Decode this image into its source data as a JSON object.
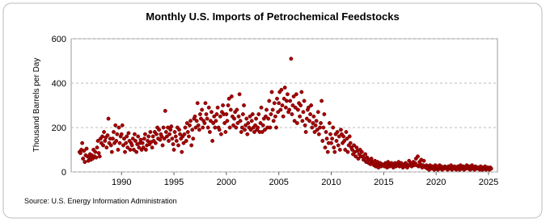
{
  "chart_data": {
    "type": "scatter",
    "title": "Monthly U.S. Imports of Petrochemical Feedstocks",
    "y_label": "Thousand Barrels per Day",
    "source": "Source: U.S. Energy Information Administration",
    "color": "#a50000",
    "grid": true,
    "xlim": [
      1985.2,
      2025.85
    ],
    "xticks": [
      1990,
      1995,
      2000,
      2005,
      2010,
      2015,
      2020,
      2025
    ],
    "ylim": [
      0,
      600
    ],
    "yticks": [
      0,
      200,
      400,
      600
    ],
    "x": [
      1986,
      1986.08,
      1986.17,
      1986.25,
      1986.33,
      1986.42,
      1986.5,
      1986.58,
      1986.67,
      1986.75,
      1986.83,
      1986.92,
      1987,
      1987.08,
      1987.17,
      1987.25,
      1987.33,
      1987.42,
      1987.5,
      1987.58,
      1987.67,
      1987.75,
      1987.83,
      1987.92,
      1988,
      1988.08,
      1988.17,
      1988.25,
      1988.33,
      1988.42,
      1988.5,
      1988.58,
      1988.67,
      1988.75,
      1988.83,
      1988.92,
      1989,
      1989.08,
      1989.17,
      1989.25,
      1989.33,
      1989.42,
      1989.5,
      1989.58,
      1989.67,
      1989.75,
      1989.83,
      1989.92,
      1990,
      1990.08,
      1990.17,
      1990.25,
      1990.33,
      1990.42,
      1990.5,
      1990.58,
      1990.67,
      1990.75,
      1990.83,
      1990.92,
      1991,
      1991.08,
      1991.17,
      1991.25,
      1991.33,
      1991.42,
      1991.5,
      1991.58,
      1991.67,
      1991.75,
      1991.83,
      1991.92,
      1992,
      1992.08,
      1992.17,
      1992.25,
      1992.33,
      1992.42,
      1992.5,
      1992.58,
      1992.67,
      1992.75,
      1992.83,
      1992.92,
      1993,
      1993.08,
      1993.17,
      1993.25,
      1993.33,
      1993.42,
      1993.5,
      1993.58,
      1993.67,
      1993.75,
      1993.83,
      1993.92,
      1994,
      1994.08,
      1994.17,
      1994.25,
      1994.33,
      1994.42,
      1994.5,
      1994.58,
      1994.67,
      1994.75,
      1994.83,
      1994.92,
      1995,
      1995.08,
      1995.17,
      1995.25,
      1995.33,
      1995.42,
      1995.5,
      1995.58,
      1995.67,
      1995.75,
      1995.83,
      1995.92,
      1996,
      1996.08,
      1996.17,
      1996.25,
      1996.33,
      1996.42,
      1996.5,
      1996.58,
      1996.67,
      1996.75,
      1996.83,
      1996.92,
      1997,
      1997.08,
      1997.17,
      1997.25,
      1997.33,
      1997.42,
      1997.5,
      1997.58,
      1997.67,
      1997.75,
      1997.83,
      1997.92,
      1998,
      1998.08,
      1998.17,
      1998.25,
      1998.33,
      1998.42,
      1998.5,
      1998.58,
      1998.67,
      1998.75,
      1998.83,
      1998.92,
      1999,
      1999.08,
      1999.17,
      1999.25,
      1999.33,
      1999.42,
      1999.5,
      1999.58,
      1999.67,
      1999.75,
      1999.83,
      1999.92,
      2000,
      2000.08,
      2000.17,
      2000.25,
      2000.33,
      2000.42,
      2000.5,
      2000.58,
      2000.67,
      2000.75,
      2000.83,
      2000.92,
      2001,
      2001.08,
      2001.17,
      2001.25,
      2001.33,
      2001.42,
      2001.5,
      2001.58,
      2001.67,
      2001.75,
      2001.83,
      2001.92,
      2002,
      2002.08,
      2002.17,
      2002.25,
      2002.33,
      2002.42,
      2002.5,
      2002.58,
      2002.67,
      2002.75,
      2002.83,
      2002.92,
      2003,
      2003.08,
      2003.17,
      2003.25,
      2003.33,
      2003.42,
      2003.5,
      2003.58,
      2003.67,
      2003.75,
      2003.83,
      2003.92,
      2004,
      2004.08,
      2004.17,
      2004.25,
      2004.33,
      2004.42,
      2004.5,
      2004.58,
      2004.67,
      2004.75,
      2004.83,
      2004.92,
      2005,
      2005.08,
      2005.17,
      2005.25,
      2005.33,
      2005.42,
      2005.5,
      2005.58,
      2005.67,
      2005.75,
      2005.83,
      2005.92,
      2006,
      2006.08,
      2006.17,
      2006.25,
      2006.33,
      2006.42,
      2006.5,
      2006.58,
      2006.67,
      2006.75,
      2006.83,
      2006.92,
      2007,
      2007.08,
      2007.17,
      2007.25,
      2007.33,
      2007.42,
      2007.5,
      2007.58,
      2007.67,
      2007.75,
      2007.83,
      2007.92,
      2008,
      2008.08,
      2008.17,
      2008.25,
      2008.33,
      2008.42,
      2008.5,
      2008.58,
      2008.67,
      2008.75,
      2008.83,
      2008.92,
      2009,
      2009.08,
      2009.17,
      2009.25,
      2009.33,
      2009.42,
      2009.5,
      2009.58,
      2009.67,
      2009.75,
      2009.83,
      2009.92,
      2010,
      2010.08,
      2010.17,
      2010.25,
      2010.33,
      2010.42,
      2010.5,
      2010.58,
      2010.67,
      2010.75,
      2010.83,
      2010.92,
      2011,
      2011.08,
      2011.17,
      2011.25,
      2011.33,
      2011.42,
      2011.5,
      2011.58,
      2011.67,
      2011.75,
      2011.83,
      2011.92,
      2012,
      2012.08,
      2012.17,
      2012.25,
      2012.33,
      2012.42,
      2012.5,
      2012.58,
      2012.67,
      2012.75,
      2012.83,
      2012.92,
      2013,
      2013.08,
      2013.17,
      2013.25,
      2013.33,
      2013.42,
      2013.5,
      2013.58,
      2013.67,
      2013.75,
      2013.83,
      2013.92,
      2014,
      2014.08,
      2014.17,
      2014.25,
      2014.33,
      2014.42,
      2014.5,
      2014.58,
      2014.67,
      2014.75,
      2014.83,
      2014.92,
      2015,
      2015.08,
      2015.17,
      2015.25,
      2015.33,
      2015.42,
      2015.5,
      2015.58,
      2015.67,
      2015.75,
      2015.83,
      2015.92,
      2016,
      2016.08,
      2016.17,
      2016.25,
      2016.33,
      2016.42,
      2016.5,
      2016.58,
      2016.67,
      2016.75,
      2016.83,
      2016.92,
      2017,
      2017.08,
      2017.17,
      2017.25,
      2017.33,
      2017.42,
      2017.5,
      2017.58,
      2017.67,
      2017.75,
      2017.83,
      2017.92,
      2018,
      2018.08,
      2018.17,
      2018.25,
      2018.33,
      2018.42,
      2018.5,
      2018.58,
      2018.67,
      2018.75,
      2018.83,
      2018.92,
      2019,
      2019.08,
      2019.17,
      2019.25,
      2019.33,
      2019.42,
      2019.5,
      2019.58,
      2019.67,
      2019.75,
      2019.83,
      2019.92,
      2020,
      2020.08,
      2020.17,
      2020.25,
      2020.33,
      2020.42,
      2020.5,
      2020.58,
      2020.67,
      2020.75,
      2020.83,
      2020.92,
      2021,
      2021.08,
      2021.17,
      2021.25,
      2021.33,
      2021.42,
      2021.5,
      2021.58,
      2021.67,
      2021.75,
      2021.83,
      2021.92,
      2022,
      2022.08,
      2022.17,
      2022.25,
      2022.33,
      2022.42,
      2022.5,
      2022.58,
      2022.67,
      2022.75,
      2022.83,
      2022.92,
      2023,
      2023.08,
      2023.17,
      2023.25,
      2023.33,
      2023.42,
      2023.5,
      2023.58,
      2023.67,
      2023.75,
      2023.83,
      2023.92,
      2024,
      2024.08,
      2024.17,
      2024.25,
      2024.33,
      2024.42,
      2024.5,
      2024.58,
      2024.67,
      2024.75,
      2024.83,
      2024.92,
      2025,
      2025.08,
      2025.17,
      2025.25
    ],
    "values": [
      90,
      85,
      100,
      130,
      60,
      95,
      45,
      75,
      105,
      70,
      50,
      65,
      80,
      55,
      75,
      60,
      100,
      70,
      90,
      65,
      110,
      140,
      85,
      70,
      150,
      130,
      160,
      120,
      180,
      140,
      155,
      110,
      165,
      240,
      130,
      150,
      120,
      90,
      150,
      180,
      130,
      210,
      140,
      170,
      100,
      200,
      130,
      160,
      170,
      210,
      120,
      150,
      90,
      130,
      160,
      110,
      175,
      140,
      100,
      130,
      120,
      150,
      100,
      170,
      140,
      90,
      125,
      160,
      110,
      130,
      145,
      100,
      130,
      110,
      150,
      170,
      100,
      120,
      140,
      160,
      125,
      180,
      135,
      110,
      160,
      140,
      180,
      130,
      170,
      200,
      150,
      190,
      145,
      170,
      160,
      120,
      200,
      150,
      275,
      180,
      160,
      200,
      140,
      170,
      190,
      205,
      150,
      125,
      100,
      180,
      160,
      140,
      200,
      120,
      190,
      170,
      150,
      90,
      160,
      130,
      170,
      200,
      140,
      220,
      180,
      160,
      210,
      230,
      120,
      190,
      150,
      240,
      250,
      200,
      230,
      310,
      210,
      190,
      260,
      240,
      280,
      200,
      230,
      220,
      310,
      260,
      240,
      200,
      290,
      180,
      230,
      270,
      140,
      220,
      250,
      200,
      230,
      260,
      290,
      200,
      190,
      250,
      170,
      270,
      300,
      260,
      220,
      180,
      260,
      230,
      300,
      330,
      200,
      280,
      340,
      250,
      210,
      240,
      270,
      200,
      280,
      220,
      250,
      350,
      230,
      180,
      200,
      260,
      300,
      190,
      210,
      240,
      170,
      220,
      200,
      250,
      190,
      230,
      260,
      200,
      180,
      210,
      240,
      190,
      200,
      260,
      180,
      220,
      290,
      180,
      210,
      240,
      190,
      250,
      280,
      200,
      240,
      320,
      200,
      260,
      360,
      280,
      230,
      310,
      250,
      200,
      330,
      270,
      310,
      360,
      280,
      370,
      300,
      250,
      330,
      380,
      290,
      320,
      350,
      270,
      280,
      320,
      510,
      260,
      300,
      340,
      230,
      290,
      350,
      220,
      280,
      310,
      250,
      300,
      360,
      230,
      270,
      320,
      210,
      180,
      240,
      280,
      290,
      230,
      260,
      300,
      200,
      220,
      250,
      180,
      210,
      230,
      190,
      270,
      170,
      200,
      220,
      320,
      140,
      200,
      260,
      110,
      180,
      150,
      90,
      130,
      220,
      170,
      130,
      150,
      200,
      110,
      90,
      170,
      140,
      180,
      120,
      160,
      100,
      190,
      170,
      130,
      160,
      140,
      100,
      180,
      150,
      90,
      120,
      160,
      130,
      110,
      100,
      80,
      120,
      90,
      70,
      110,
      95,
      60,
      80,
      100,
      70,
      90,
      70,
      55,
      60,
      80,
      45,
      65,
      50,
      40,
      55,
      35,
      60,
      45,
      40,
      30,
      50,
      25,
      35,
      45,
      20,
      30,
      40,
      25,
      35,
      30,
      30,
      25,
      40,
      35,
      20,
      45,
      30,
      25,
      35,
      40,
      30,
      20,
      30,
      40,
      25,
      35,
      30,
      45,
      25,
      30,
      40,
      35,
      20,
      30,
      25,
      40,
      35,
      20,
      30,
      50,
      30,
      40,
      25,
      35,
      45,
      30,
      40,
      60,
      30,
      70,
      25,
      45,
      35,
      55,
      20,
      30,
      50,
      25,
      20,
      30,
      15,
      25,
      10,
      30,
      20,
      15,
      25,
      20,
      10,
      30,
      15,
      25,
      10,
      20,
      30,
      15,
      25,
      10,
      20,
      15,
      25,
      20,
      20,
      10,
      25,
      15,
      20,
      30,
      10,
      20,
      15,
      25,
      20,
      10,
      15,
      25,
      20,
      10,
      30,
      15,
      20,
      25,
      10,
      20,
      15,
      30,
      20,
      15,
      25,
      10,
      20,
      30,
      15,
      20,
      10,
      25,
      15,
      20,
      15,
      20,
      10,
      25,
      15,
      10,
      20,
      15,
      25,
      10,
      15,
      20,
      15,
      10,
      20,
      15
    ]
  }
}
